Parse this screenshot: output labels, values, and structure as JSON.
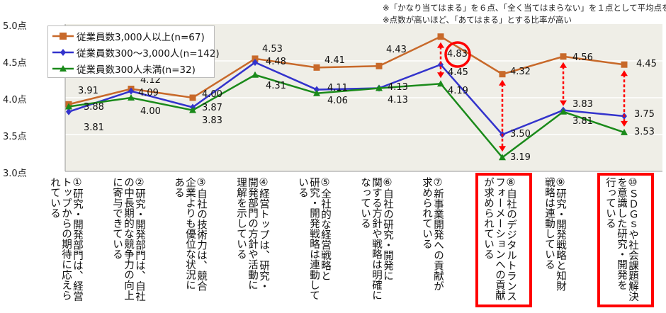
{
  "chart_data": {
    "type": "line",
    "notes": [
      "※「かなり当てはまる」を６点、「全く当てはまらない」を１点として平均点を算出",
      "※点数が高いほど、「あてはまる」とする比率が高い"
    ],
    "ylim": [
      3.0,
      5.0
    ],
    "yticks": [
      "5.0点",
      "4.5点",
      "4.0点",
      "3.5点",
      "3.0点"
    ],
    "grid": true,
    "legend_position": "top-left",
    "categories": [
      "①研究・開発部門は、経営\nトップからの期待に応えら\nれている",
      "②研究・開発部門は、自社\nの中長期的な競争力の向上\nに寄与できている",
      "③自社の技術力は、競合\n企業よりも優位な状況に\nある",
      "④経営トップは、研究・\n開発部門の方針や活動に\n理解を示している",
      "⑤全社的な経営戦略と\n研究・開発戦略は連動して\nいる",
      "⑥自社の研究・開発に\n関する方針や戦略は明確に\nなっている",
      "⑦新事業開発への貢献が\n求められている",
      "⑧自社のデジタルトランス\nフォーメーションへの貢献\nが求められている",
      "⑨研究・開発戦略と知財\n戦略は連動している",
      "⑩ＳＤＧｓや社会課題解決\nを意識した研究・開発を\n行っている"
    ],
    "highlighted_categories": [
      7,
      9
    ],
    "series": [
      {
        "name": "従業員数3,000人以上(n=67)",
        "color": "#c8692a",
        "marker": "square",
        "values": [
          3.91,
          4.12,
          4.0,
          4.53,
          4.41,
          4.43,
          4.83,
          4.32,
          4.56,
          4.45
        ],
        "labels": [
          "3.91",
          "4.12",
          "4.00",
          "4.53",
          "4.41",
          "4.43",
          "4.83",
          "4.32",
          "4.56",
          "4.45"
        ]
      },
      {
        "name": "従業員数300～3,000人(n=142)",
        "color": "#3333cc",
        "marker": "diamond",
        "values": [
          3.81,
          4.09,
          3.87,
          4.48,
          4.11,
          4.13,
          4.45,
          3.5,
          3.83,
          3.75
        ],
        "labels": [
          "3.81",
          "4.09",
          "3.87",
          "4.48",
          "4.11",
          "4.13",
          "4.45",
          "3.50",
          "3.83",
          "3.75"
        ]
      },
      {
        "name": "従業員数300人未満(n=32)",
        "color": "#1a8a1a",
        "marker": "triangle",
        "values": [
          3.88,
          4.0,
          3.83,
          4.31,
          4.06,
          4.13,
          4.19,
          3.19,
          3.81,
          3.53
        ],
        "labels": [
          "3.88",
          "4.00",
          "3.83",
          "4.31",
          "4.06",
          "4.13",
          "4.19",
          "3.19",
          "3.81",
          "3.53"
        ]
      }
    ],
    "annotations": {
      "circled_value": "4.83",
      "gap_arrows_categories": [
        6,
        7,
        8,
        9
      ],
      "accent_color": "#ff0000"
    },
    "plot_background": "#efeee7"
  }
}
